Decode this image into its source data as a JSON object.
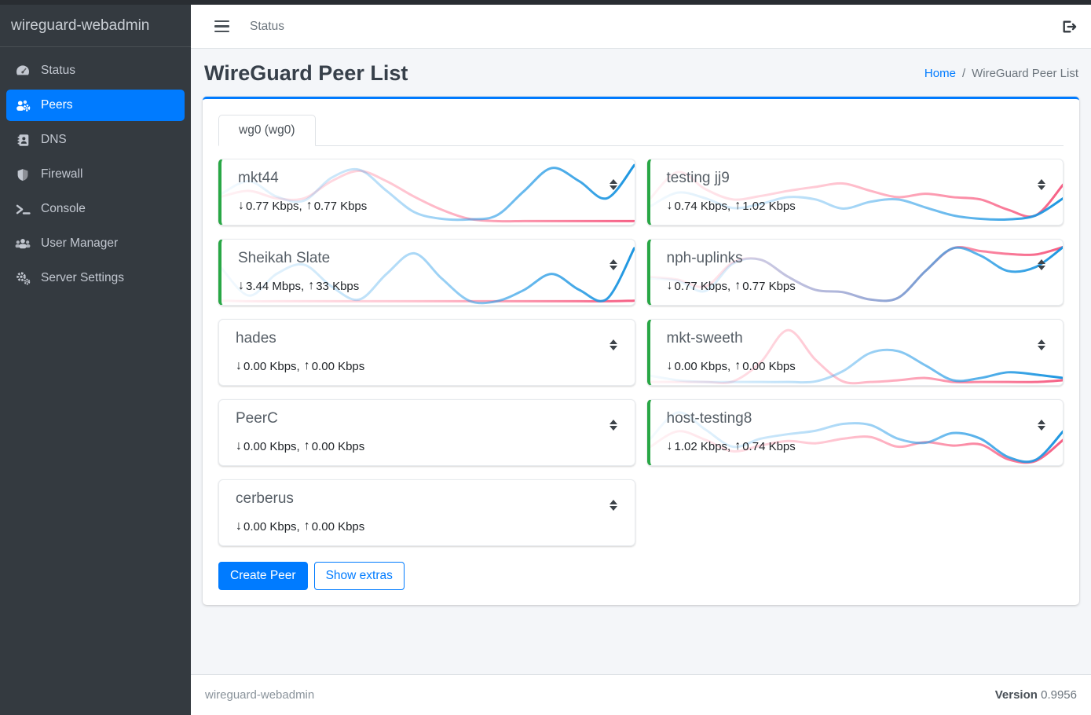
{
  "sidebar": {
    "brand": "wireguard-webadmin",
    "items": [
      {
        "label": "Status",
        "icon": "gauge-icon",
        "active": false
      },
      {
        "label": "Peers",
        "icon": "users-cog-icon",
        "active": true
      },
      {
        "label": "DNS",
        "icon": "address-book-icon",
        "active": false
      },
      {
        "label": "Firewall",
        "icon": "shield-icon",
        "active": false
      },
      {
        "label": "Console",
        "icon": "terminal-icon",
        "active": false
      },
      {
        "label": "User Manager",
        "icon": "users-icon",
        "active": false
      },
      {
        "label": "Server Settings",
        "icon": "cogs-icon",
        "active": false
      }
    ]
  },
  "topbar": {
    "nav_link": "Status"
  },
  "page": {
    "title": "WireGuard Peer List",
    "breadcrumb_home": "Home",
    "breadcrumb_sep": "/",
    "breadcrumb_current": "WireGuard Peer List"
  },
  "tab": {
    "label": "wg0 (wg0)"
  },
  "icons": {
    "down_arrow": "↓",
    "up_arrow": "↑"
  },
  "colors": {
    "accent": "#007bff",
    "online_green": "#28a745",
    "download_line": "#36a2eb",
    "upload_line": "#ff6b8a",
    "sidebar_bg": "#343a40",
    "body_bg": "#f4f6f9"
  },
  "peers": [
    {
      "name": "mkt44",
      "down": "0.77 Kbps,",
      "up": "0.77 Kbps",
      "online": true,
      "chart": {
        "download": [
          0.5,
          0.72,
          0.45,
          0.38,
          0.78,
          0.92,
          0.55,
          0.18,
          0.06,
          0.05,
          0.12,
          0.55,
          0.95,
          0.72,
          0.42,
          1.0
        ],
        "upload": [
          0.45,
          0.55,
          0.42,
          0.42,
          0.72,
          0.9,
          0.72,
          0.45,
          0.22,
          0.06,
          0.02,
          0.02,
          0.02,
          0.02,
          0.02,
          0.02
        ]
      }
    },
    {
      "name": "testing jj9",
      "down": "0.74 Kbps,",
      "up": "1.02 Kbps",
      "online": true,
      "chart": {
        "download": [
          0.28,
          0.52,
          0.42,
          0.25,
          0.32,
          0.44,
          0.4,
          0.24,
          0.36,
          0.4,
          0.26,
          0.12,
          0.06,
          0.05,
          0.12,
          0.42
        ],
        "upload": [
          0.42,
          0.88,
          0.58,
          0.4,
          0.46,
          0.55,
          0.62,
          0.68,
          0.55,
          0.44,
          0.5,
          0.44,
          0.4,
          0.22,
          0.12,
          0.66
        ]
      }
    },
    {
      "name": "Sheikah Slate",
      "down": "3.44 Mbps,",
      "up": "33 Kbps",
      "online": true,
      "chart": {
        "download": [
          0.6,
          0.12,
          0.5,
          0.66,
          0.28,
          0.05,
          0.5,
          0.86,
          0.42,
          0.03,
          0.02,
          0.22,
          0.5,
          0.22,
          0.06,
          0.95
        ],
        "upload": [
          0.03,
          0.02,
          0.02,
          0.02,
          0.02,
          0.02,
          0.02,
          0.02,
          0.02,
          0.02,
          0.02,
          0.02,
          0.02,
          0.02,
          0.02,
          0.03
        ]
      }
    },
    {
      "name": "nph-uplinks",
      "down": "0.77 Kbps,",
      "up": "0.77 Kbps",
      "online": true,
      "chart": {
        "download": [
          0.42,
          0.38,
          0.2,
          0.68,
          0.75,
          0.45,
          0.22,
          0.18,
          0.05,
          0.08,
          0.55,
          0.95,
          0.82,
          0.55,
          0.62,
          0.97
        ],
        "upload": [
          0.45,
          0.4,
          0.28,
          0.7,
          0.75,
          0.45,
          0.22,
          0.18,
          0.05,
          0.08,
          0.55,
          0.95,
          0.9,
          0.85,
          0.84,
          0.97
        ]
      }
    },
    {
      "name": "hades",
      "down": "0.00 Kbps,",
      "up": "0.00 Kbps",
      "online": false,
      "chart": {
        "download": [
          0.02,
          0.02,
          0.02,
          0.02,
          0.02,
          0.02,
          0.02,
          0.02,
          0.02,
          0.02,
          0.02,
          0.02,
          0.02,
          0.02,
          0.02,
          0.02
        ],
        "upload": [
          0.01,
          0.01,
          0.01,
          0.01,
          0.01,
          0.01,
          0.01,
          0.01,
          0.01,
          0.01,
          0.01,
          0.01,
          0.01,
          0.01,
          0.01,
          0.01
        ]
      }
    },
    {
      "name": "mkt-sweeth",
      "down": "0.00 Kbps,",
      "up": "0.00 Kbps",
      "online": true,
      "chart": {
        "download": [
          0.12,
          0.04,
          0.01,
          0.01,
          0.01,
          0.01,
          0.02,
          0.2,
          0.52,
          0.55,
          0.3,
          0.04,
          0.08,
          0.18,
          0.14,
          0.08
        ],
        "upload": [
          0.01,
          0.01,
          0.01,
          0.02,
          0.35,
          0.92,
          0.4,
          0.02,
          0.01,
          0.04,
          0.08,
          0.01,
          0.01,
          0.01,
          0.01,
          0.04
        ]
      }
    },
    {
      "name": "PeerC",
      "down": "0.00 Kbps,",
      "up": "0.00 Kbps",
      "online": false,
      "chart": {
        "download": [
          0.02,
          0.02,
          0.02,
          0.02,
          0.02,
          0.02,
          0.02,
          0.02,
          0.02,
          0.02,
          0.02,
          0.02,
          0.02,
          0.02,
          0.02,
          0.02
        ],
        "upload": [
          0.01,
          0.01,
          0.01,
          0.01,
          0.01,
          0.01,
          0.01,
          0.01,
          0.01,
          0.01,
          0.01,
          0.01,
          0.01,
          0.01,
          0.01,
          0.01
        ]
      }
    },
    {
      "name": "host-testing8",
      "down": "1.02 Kbps,",
      "up": "0.74 Kbps",
      "online": true,
      "chart": {
        "download": [
          0.42,
          0.88,
          0.58,
          0.28,
          0.42,
          0.5,
          0.56,
          0.68,
          0.66,
          0.42,
          0.35,
          0.52,
          0.42,
          0.1,
          0.05,
          0.55
        ],
        "upload": [
          0.28,
          0.55,
          0.4,
          0.2,
          0.3,
          0.38,
          0.34,
          0.42,
          0.45,
          0.28,
          0.36,
          0.3,
          0.32,
          0.06,
          0.03,
          0.4
        ]
      }
    },
    {
      "name": "cerberus",
      "down": "0.00 Kbps,",
      "up": "0.00 Kbps",
      "online": false,
      "chart": {
        "download": [
          0.02,
          0.02,
          0.02,
          0.02,
          0.02,
          0.02,
          0.02,
          0.02,
          0.02,
          0.02,
          0.02,
          0.02,
          0.02,
          0.02,
          0.02,
          0.02
        ],
        "upload": [
          0.01,
          0.01,
          0.01,
          0.01,
          0.01,
          0.01,
          0.01,
          0.01,
          0.01,
          0.01,
          0.01,
          0.01,
          0.01,
          0.01,
          0.01,
          0.01
        ]
      }
    }
  ],
  "actions": {
    "create": "Create Peer",
    "extras": "Show extras"
  },
  "footer": {
    "brand": "wireguard-webadmin",
    "version_label": "Version",
    "version_value": "0.9956"
  }
}
